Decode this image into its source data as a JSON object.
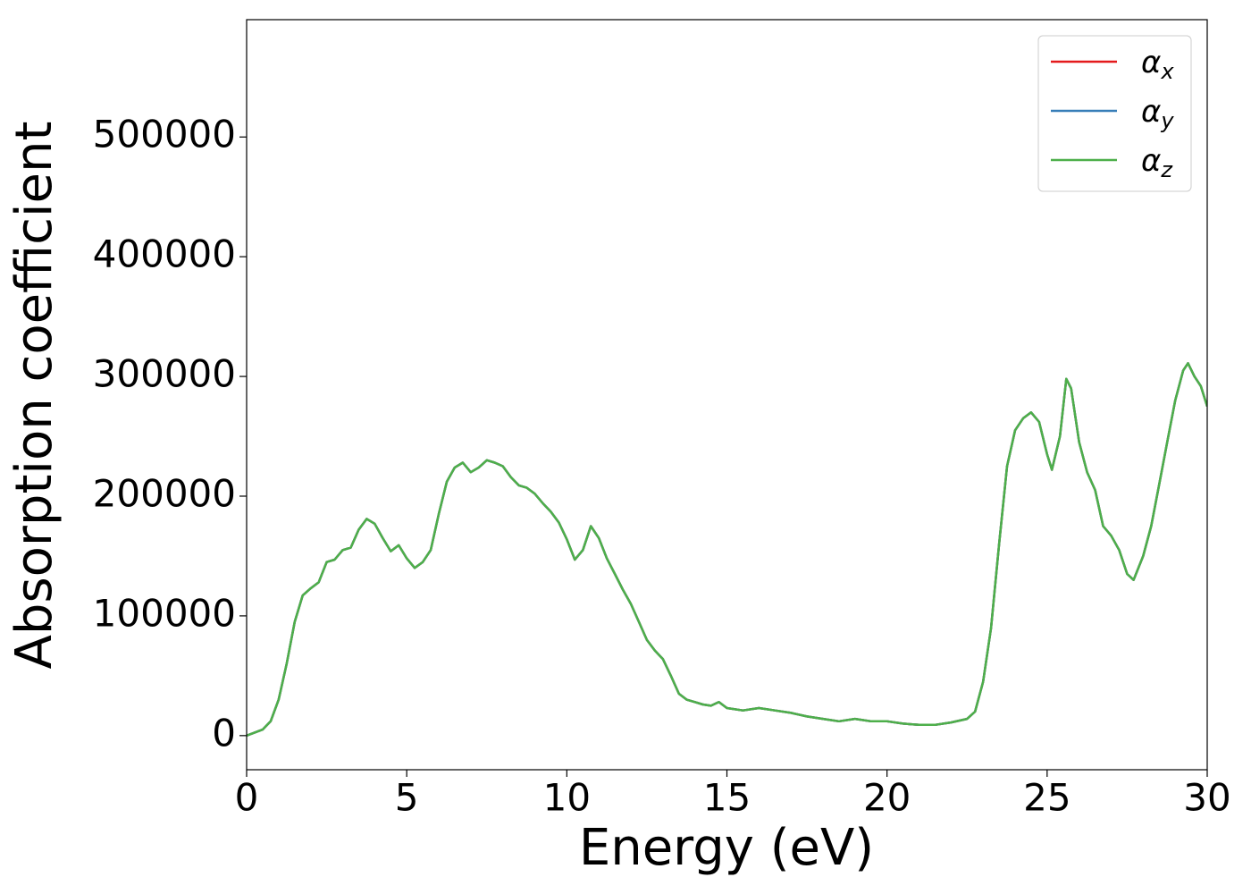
{
  "chart_data": {
    "type": "line",
    "xlabel": "Energy (eV)",
    "ylabel": "Absorption coefficient",
    "x": [
      0,
      0.5,
      0.75,
      1,
      1.25,
      1.5,
      1.75,
      2,
      2.25,
      2.5,
      2.75,
      3,
      3.25,
      3.5,
      3.75,
      4,
      4.25,
      4.5,
      4.75,
      5,
      5.25,
      5.5,
      5.75,
      6,
      6.25,
      6.5,
      6.75,
      7,
      7.25,
      7.5,
      7.75,
      8,
      8.25,
      8.5,
      8.75,
      9,
      9.25,
      9.5,
      9.75,
      10,
      10.25,
      10.5,
      10.75,
      11,
      11.25,
      11.5,
      11.75,
      12,
      12.25,
      12.5,
      12.75,
      13,
      13.25,
      13.5,
      13.75,
      14,
      14.25,
      14.5,
      14.75,
      15,
      15.5,
      16,
      16.5,
      17,
      17.5,
      18,
      18.5,
      19,
      19.5,
      20,
      20.5,
      21,
      21.5,
      22,
      22.5,
      22.75,
      23,
      23.25,
      23.5,
      23.75,
      24,
      24.25,
      24.5,
      24.75,
      25,
      25.15,
      25.4,
      25.6,
      25.75,
      26,
      26.25,
      26.5,
      26.75,
      27,
      27.25,
      27.5,
      27.7,
      28,
      28.25,
      28.5,
      28.75,
      29,
      29.25,
      29.4,
      29.6,
      29.8,
      30
    ],
    "series": [
      {
        "name": "αx",
        "color": "#e41a1c",
        "values": [
          0,
          5000,
          12000,
          30000,
          60000,
          95000,
          117000,
          123000,
          128000,
          145000,
          147000,
          155000,
          157000,
          172000,
          181000,
          177000,
          165000,
          154000,
          159000,
          148000,
          140000,
          145000,
          155000,
          185000,
          212000,
          224000,
          228000,
          220000,
          224000,
          230000,
          228000,
          225000,
          216000,
          209000,
          207000,
          202000,
          194000,
          187000,
          178000,
          164000,
          147000,
          155000,
          175000,
          165000,
          148000,
          135000,
          122000,
          110000,
          95000,
          80000,
          71000,
          64000,
          50000,
          35000,
          30000,
          28000,
          26000,
          25000,
          28000,
          23000,
          21000,
          23000,
          21000,
          19000,
          16000,
          14000,
          12000,
          14000,
          12000,
          12000,
          10000,
          9000,
          9000,
          11000,
          14000,
          20000,
          45000,
          90000,
          160000,
          225000,
          255000,
          265000,
          270000,
          262000,
          235000,
          222000,
          250000,
          298000,
          290000,
          245000,
          220000,
          205000,
          175000,
          167000,
          155000,
          135000,
          130000,
          150000,
          175000,
          210000,
          245000,
          280000,
          305000,
          311000,
          300000,
          292000,
          275000
        ]
      },
      {
        "name": "αy",
        "color": "#377eb8",
        "values": [
          0,
          5000,
          12000,
          30000,
          60000,
          95000,
          117000,
          123000,
          128000,
          145000,
          147000,
          155000,
          157000,
          172000,
          181000,
          177000,
          165000,
          154000,
          159000,
          148000,
          140000,
          145000,
          155000,
          185000,
          212000,
          224000,
          228000,
          220000,
          224000,
          230000,
          228000,
          225000,
          216000,
          209000,
          207000,
          202000,
          194000,
          187000,
          178000,
          164000,
          147000,
          155000,
          175000,
          165000,
          148000,
          135000,
          122000,
          110000,
          95000,
          80000,
          71000,
          64000,
          50000,
          35000,
          30000,
          28000,
          26000,
          25000,
          28000,
          23000,
          21000,
          23000,
          21000,
          19000,
          16000,
          14000,
          12000,
          14000,
          12000,
          12000,
          10000,
          9000,
          9000,
          11000,
          14000,
          20000,
          45000,
          90000,
          160000,
          225000,
          255000,
          265000,
          270000,
          262000,
          235000,
          222000,
          250000,
          298000,
          290000,
          245000,
          220000,
          205000,
          175000,
          167000,
          155000,
          135000,
          130000,
          150000,
          175000,
          210000,
          245000,
          280000,
          305000,
          311000,
          300000,
          292000,
          275000
        ]
      },
      {
        "name": "αz",
        "color": "#4daf4a",
        "values": [
          0,
          5000,
          12000,
          30000,
          60000,
          95000,
          117000,
          123000,
          128000,
          145000,
          147000,
          155000,
          157000,
          172000,
          181000,
          177000,
          165000,
          154000,
          159000,
          148000,
          140000,
          145000,
          155000,
          185000,
          212000,
          224000,
          228000,
          220000,
          224000,
          230000,
          228000,
          225000,
          216000,
          209000,
          207000,
          202000,
          194000,
          187000,
          178000,
          164000,
          147000,
          155000,
          175000,
          165000,
          148000,
          135000,
          122000,
          110000,
          95000,
          80000,
          71000,
          64000,
          50000,
          35000,
          30000,
          28000,
          26000,
          25000,
          28000,
          23000,
          21000,
          23000,
          21000,
          19000,
          16000,
          14000,
          12000,
          14000,
          12000,
          12000,
          10000,
          9000,
          9000,
          11000,
          14000,
          20000,
          45000,
          90000,
          160000,
          225000,
          255000,
          265000,
          270000,
          262000,
          235000,
          222000,
          250000,
          298000,
          290000,
          245000,
          220000,
          205000,
          175000,
          167000,
          155000,
          135000,
          130000,
          150000,
          175000,
          210000,
          245000,
          280000,
          305000,
          311000,
          300000,
          292000,
          275000
        ]
      }
    ],
    "xlim": [
      0,
      30
    ],
    "xticks": [
      0,
      5,
      10,
      15,
      20,
      25,
      30
    ],
    "ylim": [
      -28500,
      598000
    ],
    "yticks": [
      0,
      100000,
      200000,
      300000,
      400000,
      500000
    ],
    "legend": "upper right",
    "grid": false
  }
}
